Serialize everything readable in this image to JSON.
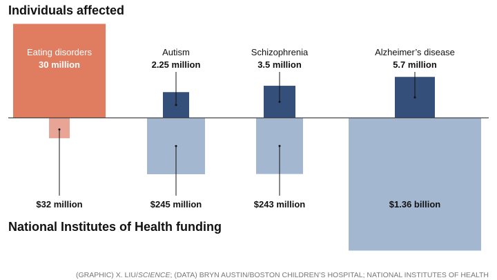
{
  "chart_data": {
    "type": "bar",
    "title_top": "Individuals affected",
    "title_bottom": "National Institutes of Health funding",
    "categories": [
      "Eating disorders",
      "Autism",
      "Schizophrenia",
      "Alzheimer’s disease"
    ],
    "series": [
      {
        "name": "Individuals affected",
        "values": [
          30,
          2.25,
          3.5,
          5.7
        ],
        "value_labels": [
          "30 million",
          "2.25 million",
          "3.5 million",
          "5.7 million"
        ],
        "unit": "million"
      },
      {
        "name": "National Institutes of Health funding",
        "values": [
          32,
          245,
          243,
          1360
        ],
        "value_labels": [
          "$32 million",
          "$245 million",
          "$243 million",
          "$1.36 billion"
        ],
        "unit": "$ million"
      }
    ],
    "credit": {
      "prefix": "(GRAPHIC) X. LIU/",
      "italic": "SCIENCE",
      "suffix": "; (DATA) BRYN AUSTIN/BOSTON CHILDREN’S HOSPITAL; NATIONAL INSTITUTES OF HEALTH"
    }
  },
  "colors": {
    "highlight_top": "#e07d60",
    "highlight_bottom": "#e8a595",
    "others_top": "#34507a",
    "others_bottom": "#a3b8d0",
    "axis": "#444444",
    "text": "#111111",
    "credit": "#777777"
  }
}
